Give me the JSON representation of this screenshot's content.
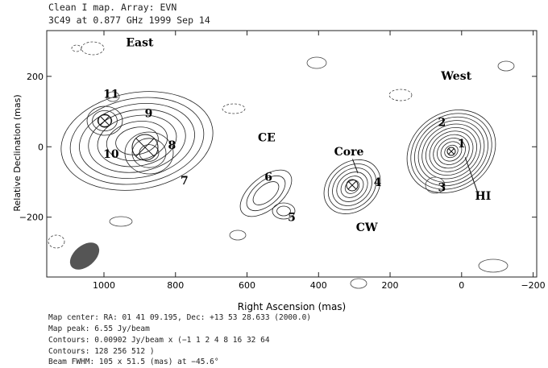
{
  "header": {
    "title_line1": "Clean I map.  Array:  EVN",
    "title_line2": "3C49 at 0.877 GHz 1999 Sep 14"
  },
  "chart_data": {
    "type": "contour",
    "title": "Clean I map.  Array:  EVN",
    "subtitle": "3C49 at 0.877 GHz 1999 Sep 14",
    "xlabel": "Right Ascension  (mas)",
    "ylabel": "Relative Declination  (mas)",
    "xlim": [
      1160,
      -210
    ],
    "ylim": [
      -370,
      330
    ],
    "xticks": [
      1000,
      800,
      600,
      400,
      200,
      0,
      -200
    ],
    "yticks": [
      200,
      0,
      -200
    ],
    "region_labels": [
      {
        "text": "East",
        "x": 900,
        "y": 285
      },
      {
        "text": "West",
        "x": 15,
        "y": 190
      },
      {
        "text": "CE",
        "x": 545,
        "y": 15
      },
      {
        "text": "CW",
        "x": 265,
        "y": -240
      },
      {
        "text": "Core",
        "x": 315,
        "y": -25
      },
      {
        "text": "HI",
        "x": -60,
        "y": -150
      }
    ],
    "components": [
      {
        "id": "1",
        "x": 0,
        "y": 10
      },
      {
        "id": "2",
        "x": 55,
        "y": 70
      },
      {
        "id": "3",
        "x": 55,
        "y": -115
      },
      {
        "id": "4",
        "x": 235,
        "y": -100
      },
      {
        "id": "5",
        "x": 475,
        "y": -200
      },
      {
        "id": "6",
        "x": 540,
        "y": -85
      },
      {
        "id": "7",
        "x": 775,
        "y": -95
      },
      {
        "id": "8",
        "x": 810,
        "y": 5
      },
      {
        "id": "9",
        "x": 875,
        "y": 95
      },
      {
        "id": "10",
        "x": 980,
        "y": -20
      },
      {
        "id": "11",
        "x": 980,
        "y": 150
      }
    ]
  },
  "footer": {
    "line1": "Map center:  RA: 01 41 09.195,  Dec: +13 53 28.633 (2000.0)",
    "line2": "Map peak: 6.55 Jy/beam",
    "line3": "Contours: 0.00902 Jy/beam x (−1 1 2 4 8 16 32 64",
    "line4": "Contours: 128 256 512 )",
    "line5": "Beam FWHM: 105 x 51.5 (mas) at −45.6°"
  }
}
